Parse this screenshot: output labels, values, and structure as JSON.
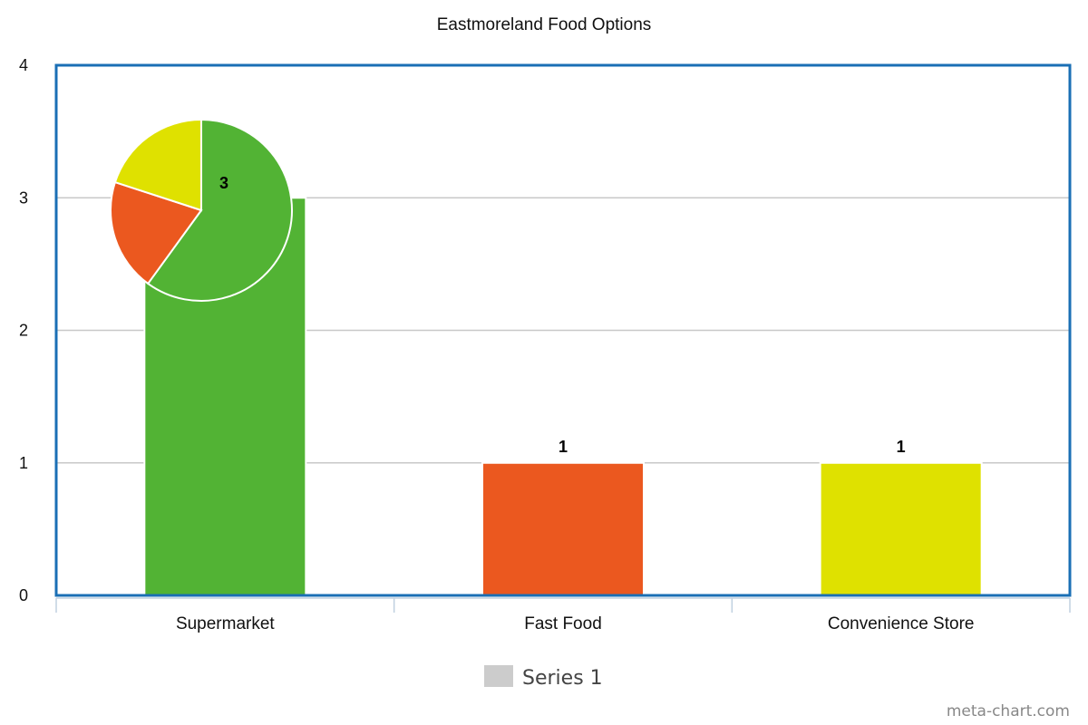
{
  "chart_data": {
    "type": "bar",
    "title": "Eastmoreland Food Options",
    "categories": [
      "Supermarket",
      "Fast Food",
      "Convenience Store"
    ],
    "series": [
      {
        "name": "Series 1",
        "values": [
          3,
          1,
          1
        ]
      }
    ],
    "bar_colors": [
      "#52b334",
      "#eb581f",
      "#dfe100"
    ],
    "ylim": [
      0,
      4
    ],
    "yticks": [
      0,
      1,
      2,
      3,
      4
    ],
    "grid": true,
    "legend_position": "bottom",
    "inset_pie": {
      "values": [
        3,
        1,
        1
      ],
      "colors": [
        "#52b334",
        "#eb581f",
        "#dfe100"
      ]
    }
  },
  "colors": {
    "frame": "#1a6fb5",
    "grid": "#c8c8c8",
    "legend_swatch": "#cccccc"
  },
  "watermark": "meta-chart.com"
}
